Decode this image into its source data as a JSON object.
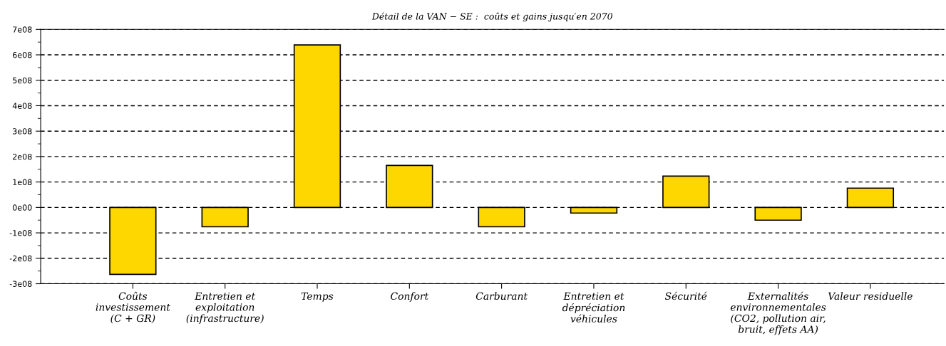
{
  "chart_data": {
    "type": "bar",
    "title": "Détail de la VAN − SE :  coûts et gains jusqu′en 2070",
    "categories": [
      "Coûts\ninvestissement\n(C + GR)",
      "Entretien et\nexploitation\n(infrastructure)",
      "Temps",
      "Confort",
      "Carburant",
      "Entretien et\ndépréciation\nvéhicules",
      "Sécurité",
      "Externalités\nenvironnementales\n(CO2, pollution air,\nbruit, effets AA)",
      "Valeur residuelle"
    ],
    "values": [
      -263000000,
      -76000000,
      639000000,
      165000000,
      -76000000,
      -22000000,
      123000000,
      -50000000,
      76000000
    ],
    "color": "#ffd700",
    "ylim": [
      -300000000,
      700000000
    ],
    "yticks": [
      {
        "value": -300000000,
        "label": "-3e08"
      },
      {
        "value": -200000000,
        "label": "-2e08"
      },
      {
        "value": -100000000,
        "label": "-1e08"
      },
      {
        "value": 0,
        "label": "0e00"
      },
      {
        "value": 100000000,
        "label": "1e08"
      },
      {
        "value": 200000000,
        "label": "2e08"
      },
      {
        "value": 300000000,
        "label": "3e08"
      },
      {
        "value": 400000000,
        "label": "4e08"
      },
      {
        "value": 500000000,
        "label": "5e08"
      },
      {
        "value": 600000000,
        "label": "6e08"
      },
      {
        "value": 700000000,
        "label": "7e08"
      }
    ],
    "grid": "y",
    "line_style": "dashed"
  }
}
